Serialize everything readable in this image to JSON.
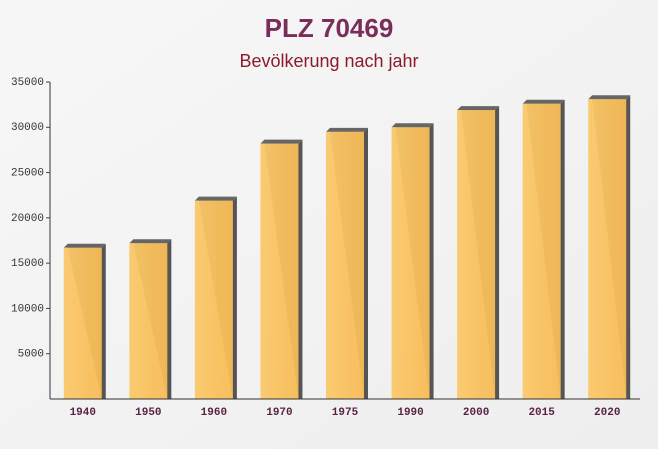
{
  "chart_data": {
    "type": "bar",
    "title": "PLZ 70469",
    "subtitle": "Bevölkerung nach jahr",
    "categories": [
      "1940",
      "1950",
      "1960",
      "1970",
      "1975",
      "1990",
      "2000",
      "2015",
      "2020"
    ],
    "values": [
      16700,
      17200,
      21900,
      28200,
      29500,
      30000,
      31900,
      32600,
      33100
    ],
    "color": "#f9c060",
    "ylim": [
      0,
      35000
    ],
    "yticks": [
      5000,
      10000,
      15000,
      20000,
      25000,
      30000,
      35000
    ],
    "grid": false
  }
}
